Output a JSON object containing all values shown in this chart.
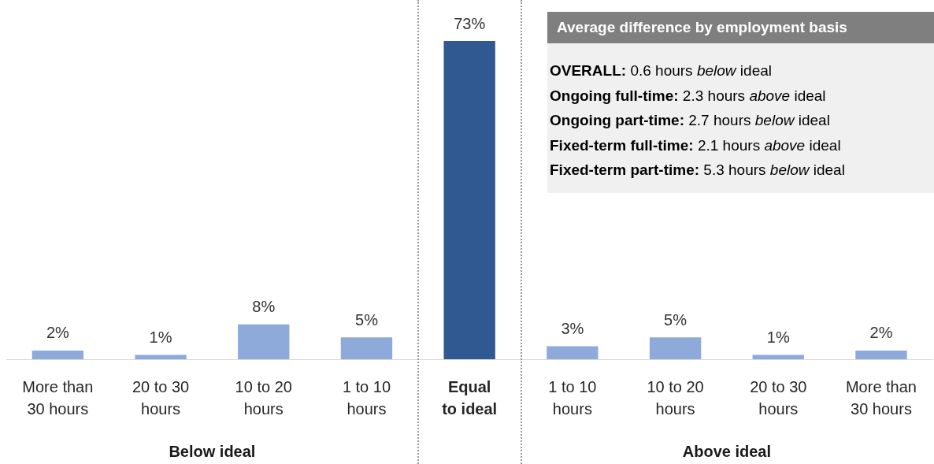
{
  "chart_data": {
    "type": "bar",
    "categories": [
      "More than 30 hours",
      "20 to 30 hours",
      "10 to 20 hours",
      "1 to 10 hours",
      "Equal to ideal",
      "1 to 10 hours",
      "10 to 20 hours",
      "20 to 30 hours",
      "More than 30 hours"
    ],
    "values": [
      2,
      1,
      8,
      5,
      73,
      3,
      5,
      1,
      2
    ],
    "colors": [
      "#8eaadb",
      "#8eaadb",
      "#8eaadb",
      "#8eaadb",
      "#2f5990",
      "#8eaadb",
      "#8eaadb",
      "#8eaadb",
      "#8eaadb"
    ],
    "value_labels": [
      "2%",
      "1%",
      "8%",
      "5%",
      "73%",
      "3%",
      "5%",
      "1%",
      "2%"
    ],
    "annotations": [
      "Average difference by employment basis",
      "OVERALL: 0.6 hours below ideal",
      "Ongoing full-time: 2.3 hours above ideal",
      "Ongoing part-time: 2.7 hours below ideal",
      "Fixed-term full-time: 2.1 hours above ideal",
      "Fixed-term part-time: 5.3 hours below ideal",
      "Below ideal",
      "Above ideal"
    ]
  }
}
